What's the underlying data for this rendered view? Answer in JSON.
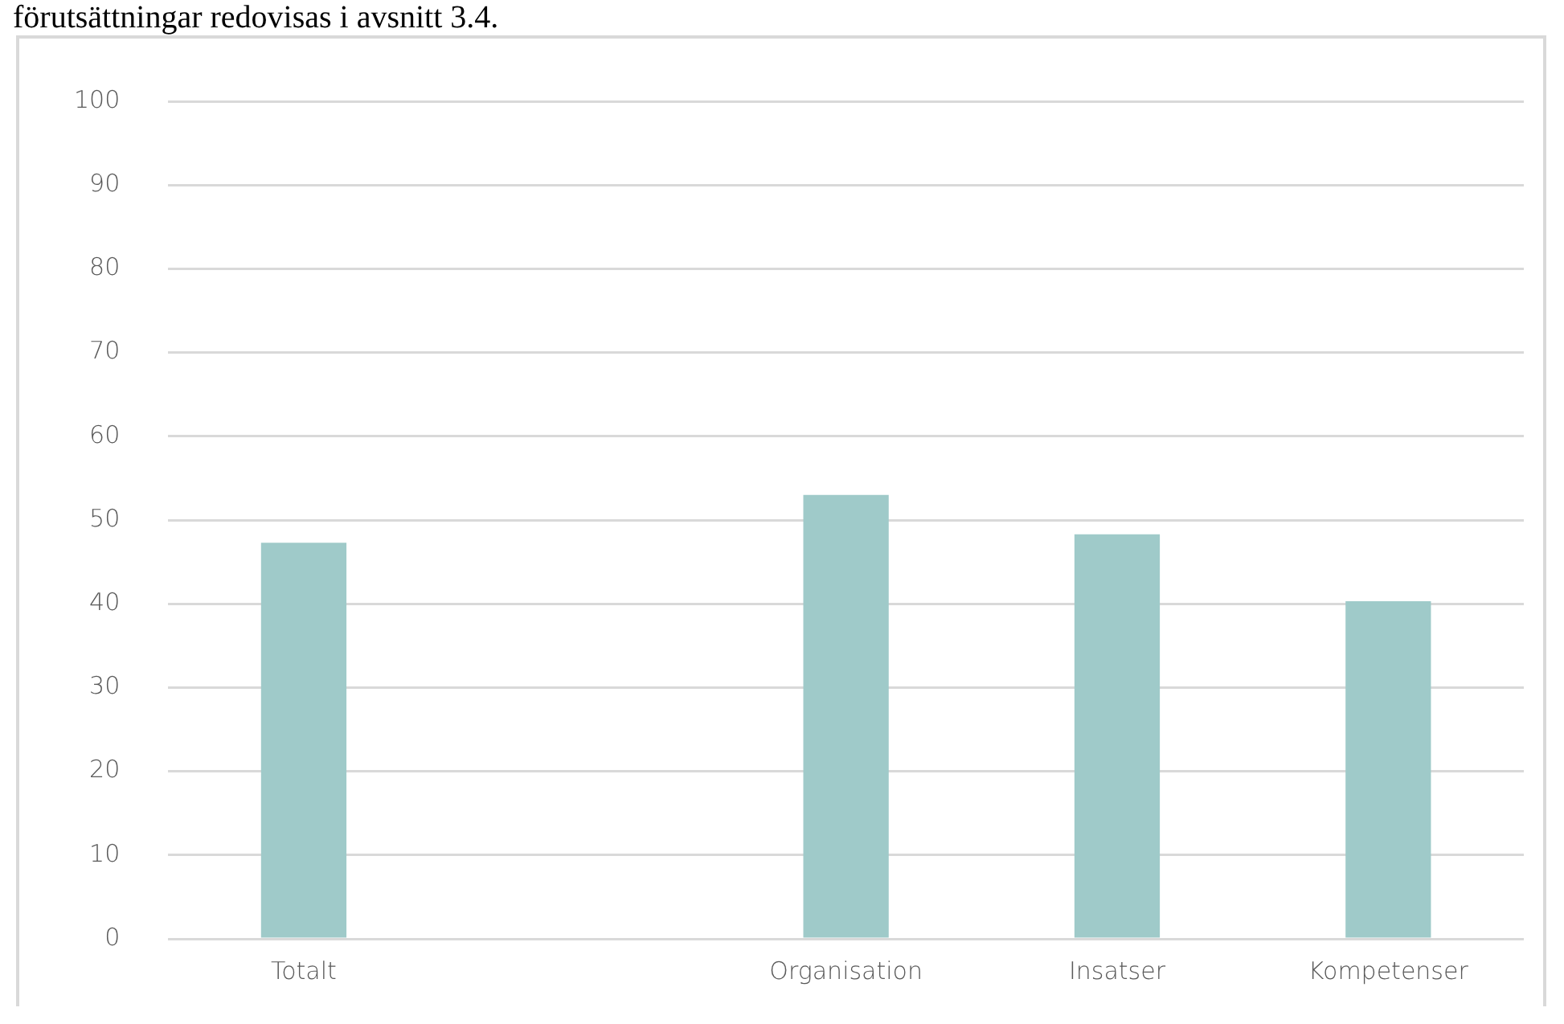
{
  "chart_data": {
    "type": "bar",
    "categories": [
      "Totalt",
      null,
      "Organisation",
      "Insatser",
      "Kompetenser"
    ],
    "values": [
      47.3,
      null,
      53.0,
      48.3,
      40.3
    ],
    "color": "#9fcac9",
    "ylim": [
      0,
      100
    ],
    "yticks": [
      0,
      10,
      20,
      30,
      40,
      50,
      60,
      70,
      80,
      90,
      100
    ],
    "grid": "y",
    "legend": false,
    "annotations": [
      "förutsättningar redovisas i avsnitt 3.4."
    ]
  }
}
